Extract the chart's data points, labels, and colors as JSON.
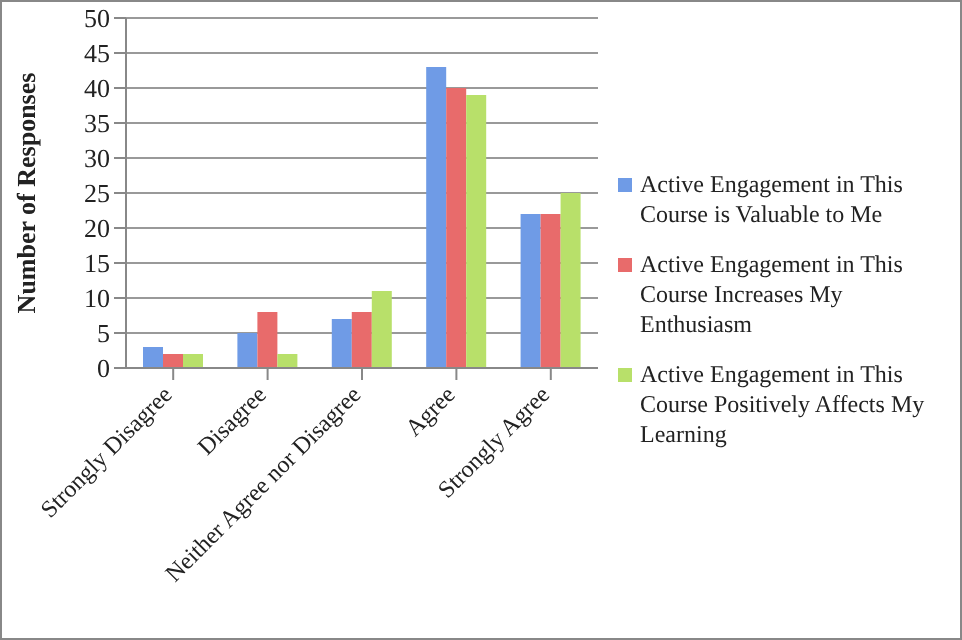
{
  "chart_data": {
    "type": "bar",
    "ylabel": "Number of Responses",
    "categories": [
      "Strongly Disagree",
      "Disagree",
      "Neither Agree nor Disagree",
      "Agree",
      "Strongly Agree"
    ],
    "series": [
      {
        "name": "Active Engagement in This Course is Valuable to Me",
        "color": "#6f9be6",
        "values": [
          3,
          5,
          7,
          43,
          22
        ]
      },
      {
        "name": "Active Engagement in This Course Increases My Enthusiasm",
        "color": "#e86b6b",
        "values": [
          2,
          8,
          8,
          40,
          22
        ]
      },
      {
        "name": "Active Engagement in This Course Positively Affects My Learning",
        "color": "#b8e06a",
        "values": [
          2,
          2,
          11,
          39,
          25
        ]
      }
    ],
    "ylim": [
      0,
      50
    ],
    "yticks": [
      0,
      5,
      10,
      15,
      20,
      25,
      30,
      35,
      40,
      45,
      50
    ],
    "grid": "y",
    "legend": "right"
  }
}
